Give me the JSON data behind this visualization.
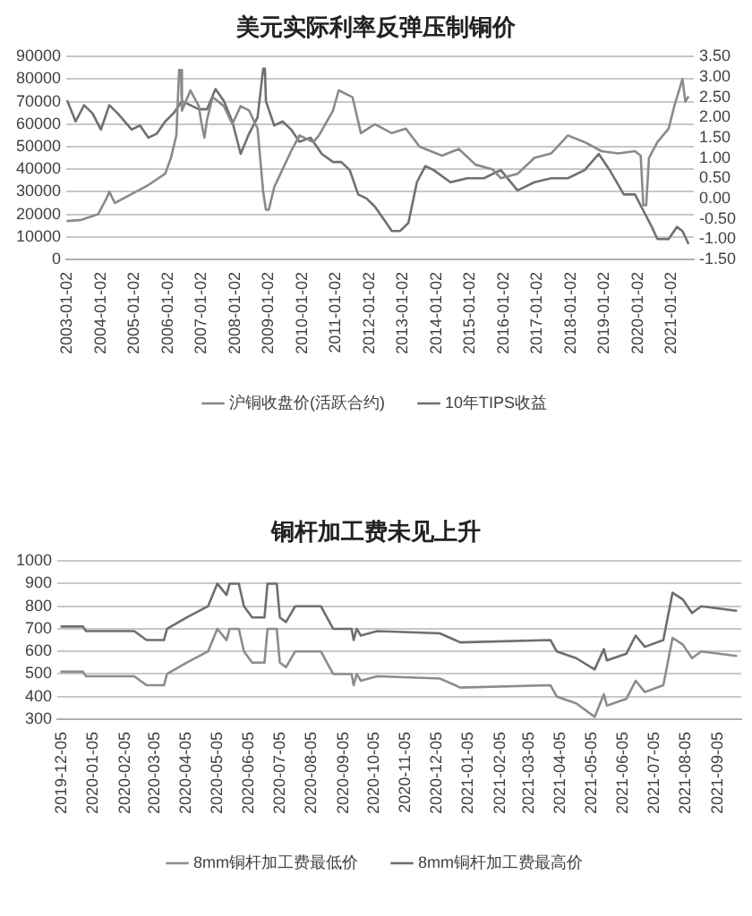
{
  "chart_data": [
    {
      "type": "line",
      "title": "美元实际利率反弹压制铜价",
      "xlim": [
        "2002-12-20",
        "2021-09-01"
      ],
      "xticks": [
        "2003-01-02",
        "2004-01-02",
        "2005-01-02",
        "2006-01-02",
        "2007-01-02",
        "2008-01-02",
        "2009-01-02",
        "2010-01-02",
        "2011-01-02",
        "2012-01-02",
        "2013-01-02",
        "2014-01-02",
        "2015-01-02",
        "2016-01-02",
        "2017-01-02",
        "2018-01-02",
        "2019-01-02",
        "2020-01-02",
        "2021-01-02"
      ],
      "ylim": [
        0,
        90000
      ],
      "yticks": [
        0,
        10000,
        20000,
        30000,
        40000,
        50000,
        60000,
        70000,
        80000,
        90000
      ],
      "y2lim": [
        -1.5,
        3.5
      ],
      "y2ticks": [
        {
          "value": -1.5,
          "label": "-1.50"
        },
        {
          "value": -1,
          "label": "-1.00"
        },
        {
          "value": -0.5,
          "label": "-0.50"
        },
        {
          "value": 0,
          "label": "0.00"
        },
        {
          "value": 0.5,
          "label": "0.50"
        },
        {
          "value": 1,
          "label": "1.00"
        },
        {
          "value": 1.5,
          "label": "1.50"
        },
        {
          "value": 2,
          "label": "2.00"
        },
        {
          "value": 2.5,
          "label": "2.50"
        },
        {
          "value": 3,
          "label": "3.00"
        },
        {
          "value": 3.5,
          "label": "3.50"
        }
      ],
      "grid": "y",
      "legend": "bottom",
      "line_style": "solid",
      "series": [
        {
          "name": "沪铜收盘价(活跃合约)",
          "color": "#8a8a8a",
          "x": [
            "2003-01",
            "2003-06",
            "2003-12",
            "2004-03",
            "2004-04",
            "2004-06",
            "2004-12",
            "2005-06",
            "2005-12",
            "2006-02",
            "2006-04",
            "2006-05",
            "2006-05-20",
            "2006-06",
            "2006-09",
            "2006-12",
            "2007-01",
            "2007-02",
            "2007-03",
            "2007-05",
            "2007-09",
            "2007-12",
            "2008-03",
            "2008-06",
            "2008-09",
            "2008-11",
            "2008-12",
            "2009-01",
            "2009-03",
            "2009-06",
            "2009-09",
            "2009-12",
            "2010-05",
            "2010-07",
            "2010-12",
            "2011-02",
            "2011-07",
            "2011-10",
            "2012-03",
            "2012-09",
            "2013-02",
            "2013-07",
            "2014-03",
            "2014-09",
            "2015-03",
            "2015-09",
            "2015-12",
            "2016-06",
            "2016-12",
            "2017-06",
            "2017-12",
            "2018-06",
            "2018-12",
            "2019-06",
            "2019-12",
            "2020-02",
            "2020-03",
            "2020-04",
            "2020-05",
            "2020-08",
            "2020-12",
            "2021-02",
            "2021-05",
            "2021-06",
            "2021-07"
          ],
          "values": [
            17000,
            17500,
            20000,
            27000,
            30000,
            25000,
            29000,
            33000,
            38000,
            45000,
            55000,
            84000,
            84000,
            66000,
            75000,
            68000,
            60000,
            54000,
            62000,
            72000,
            68000,
            60000,
            68000,
            66000,
            58000,
            30000,
            22000,
            22000,
            32000,
            40000,
            48000,
            55000,
            52000,
            55000,
            66000,
            75000,
            72000,
            56000,
            60000,
            56000,
            58000,
            50000,
            46000,
            49000,
            42000,
            40000,
            36000,
            38000,
            45000,
            47000,
            55000,
            52000,
            48000,
            47000,
            48000,
            46000,
            24000,
            24000,
            45000,
            52000,
            58000,
            68000,
            80000,
            70000,
            72000
          ]
        },
        {
          "name": "10年TIPS收益",
          "color": "#707070",
          "axis": "y2",
          "x": [
            "2003-01",
            "2003-04",
            "2003-07",
            "2003-10",
            "2004-01",
            "2004-04",
            "2004-07",
            "2004-12",
            "2005-03",
            "2005-06",
            "2005-09",
            "2005-12",
            "2006-03",
            "2006-06",
            "2006-09",
            "2006-12",
            "2007-03",
            "2007-06",
            "2007-09",
            "2007-12",
            "2008-03",
            "2008-06",
            "2008-09",
            "2008-11",
            "2008-11-20",
            "2008-12",
            "2009-03",
            "2009-06",
            "2009-09",
            "2009-12",
            "2010-04",
            "2010-08",
            "2010-12",
            "2011-03",
            "2011-06",
            "2011-09",
            "2011-12",
            "2012-03",
            "2012-06",
            "2012-09",
            "2012-12",
            "2013-03",
            "2013-06",
            "2013-09",
            "2013-12",
            "2014-06",
            "2014-12",
            "2015-06",
            "2015-12",
            "2016-06",
            "2016-12",
            "2017-06",
            "2017-12",
            "2018-06",
            "2018-11",
            "2019-03",
            "2019-08",
            "2019-12",
            "2020-03",
            "2020-06",
            "2020-08",
            "2020-12",
            "2021-03",
            "2021-05",
            "2021-07"
          ],
          "values": [
            2.4,
            1.9,
            2.3,
            2.1,
            1.7,
            2.3,
            2.1,
            1.7,
            1.8,
            1.5,
            1.6,
            1.9,
            2.1,
            2.4,
            2.3,
            2.2,
            2.2,
            2.7,
            2.4,
            1.9,
            1.1,
            1.6,
            2.0,
            3.2,
            3.2,
            2.4,
            1.8,
            1.9,
            1.7,
            1.4,
            1.5,
            1.1,
            0.9,
            0.9,
            0.7,
            0.1,
            0.0,
            -0.2,
            -0.5,
            -0.8,
            -0.8,
            -0.6,
            0.4,
            0.8,
            0.7,
            0.4,
            0.5,
            0.5,
            0.7,
            0.2,
            0.4,
            0.5,
            0.5,
            0.7,
            1.1,
            0.7,
            0.1,
            0.1,
            -0.3,
            -0.7,
            -1.0,
            -1.0,
            -0.7,
            -0.8,
            -1.1
          ]
        }
      ]
    },
    {
      "type": "line",
      "title": "铜杆加工费未见上升",
      "xlim": [
        "2019-12-01",
        "2021-09-28"
      ],
      "xticks": [
        "2019-12-05",
        "2020-01-05",
        "2020-02-05",
        "2020-03-05",
        "2020-04-05",
        "2020-05-05",
        "2020-06-05",
        "2020-07-05",
        "2020-08-05",
        "2020-09-05",
        "2020-10-05",
        "2020-11-05",
        "2020-12-05",
        "2021-01-05",
        "2021-02-05",
        "2021-03-05",
        "2021-04-05",
        "2021-05-05",
        "2021-06-05",
        "2021-07-05",
        "2021-08-05",
        "2021-09-05"
      ],
      "ylim": [
        300,
        1000
      ],
      "yticks": [
        300,
        400,
        500,
        600,
        700,
        800,
        900,
        1000
      ],
      "grid": "y",
      "legend": "bottom",
      "line_style": "solid",
      "series": [
        {
          "name": "8mm铜杆加工费最低价",
          "color": "#8c8c8c",
          "x": [
            "2019-12-05",
            "2019-12-26",
            "2019-12-29",
            "2020-02-14",
            "2020-02-26",
            "2020-03-14",
            "2020-03-17",
            "2020-04-05",
            "2020-04-26",
            "2020-05-05",
            "2020-05-14",
            "2020-05-17",
            "2020-05-26",
            "2020-05-31",
            "2020-06-08",
            "2020-06-20",
            "2020-06-23",
            "2020-07-02",
            "2020-07-05",
            "2020-07-11",
            "2020-07-20",
            "2020-08-14",
            "2020-08-20",
            "2020-08-26",
            "2020-09-13",
            "2020-09-15",
            "2020-09-18",
            "2020-09-22",
            "2020-10-08",
            "2020-12-08",
            "2020-12-28",
            "2021-03-26",
            "2021-04-01",
            "2021-04-20",
            "2021-05-08",
            "2021-05-17",
            "2021-05-20",
            "2021-06-08",
            "2021-06-17",
            "2021-06-26",
            "2021-07-14",
            "2021-07-23",
            "2021-08-02",
            "2021-08-11",
            "2021-08-20",
            "2021-09-23"
          ],
          "values": [
            510,
            510,
            490,
            490,
            450,
            450,
            500,
            550,
            600,
            700,
            650,
            700,
            700,
            600,
            550,
            550,
            700,
            700,
            550,
            530,
            600,
            600,
            550,
            500,
            500,
            450,
            500,
            470,
            490,
            480,
            440,
            450,
            400,
            370,
            310,
            410,
            360,
            390,
            470,
            420,
            450,
            660,
            630,
            570,
            600,
            580
          ]
        },
        {
          "name": "8mm铜杆加工费最高价",
          "color": "#6e6e6e",
          "x": [
            "2019-12-05",
            "2019-12-26",
            "2019-12-29",
            "2020-02-14",
            "2020-02-26",
            "2020-03-14",
            "2020-03-17",
            "2020-04-05",
            "2020-04-26",
            "2020-05-05",
            "2020-05-14",
            "2020-05-17",
            "2020-05-26",
            "2020-05-31",
            "2020-06-08",
            "2020-06-20",
            "2020-06-23",
            "2020-07-02",
            "2020-07-05",
            "2020-07-11",
            "2020-07-20",
            "2020-08-14",
            "2020-08-20",
            "2020-08-26",
            "2020-09-13",
            "2020-09-15",
            "2020-09-18",
            "2020-09-22",
            "2020-10-08",
            "2020-12-08",
            "2020-12-28",
            "2021-03-26",
            "2021-04-01",
            "2021-04-20",
            "2021-05-08",
            "2021-05-17",
            "2021-05-20",
            "2021-06-08",
            "2021-06-17",
            "2021-06-26",
            "2021-07-14",
            "2021-07-23",
            "2021-08-02",
            "2021-08-11",
            "2021-08-20",
            "2021-09-23"
          ],
          "values": [
            710,
            710,
            690,
            690,
            650,
            650,
            700,
            750,
            800,
            900,
            850,
            900,
            900,
            800,
            750,
            750,
            900,
            900,
            750,
            730,
            800,
            800,
            750,
            700,
            700,
            650,
            700,
            670,
            690,
            680,
            640,
            650,
            600,
            570,
            520,
            610,
            560,
            590,
            670,
            620,
            650,
            860,
            830,
            770,
            800,
            780
          ]
        }
      ]
    }
  ]
}
